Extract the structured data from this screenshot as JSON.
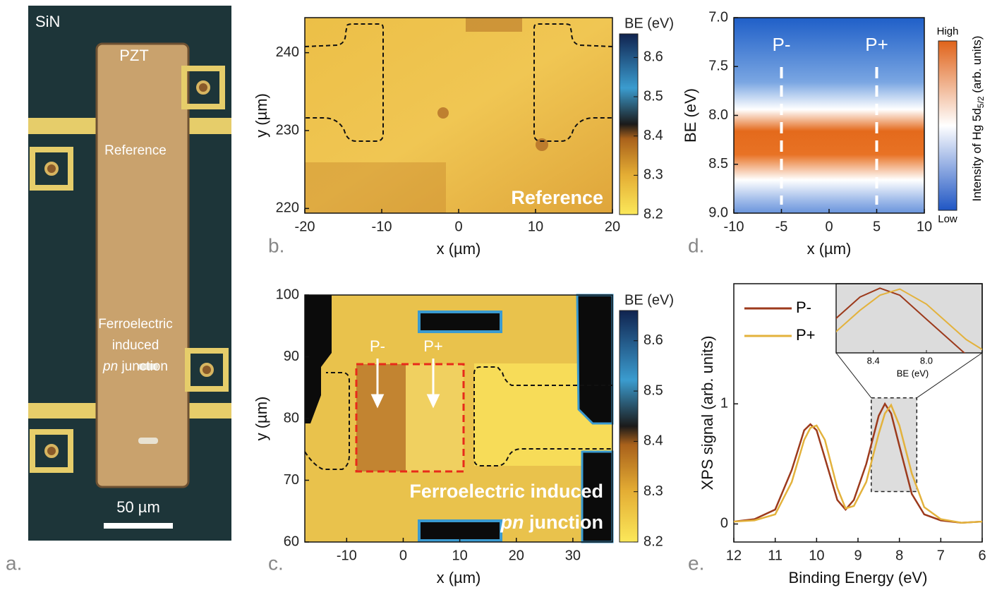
{
  "chart_data": [
    {
      "type": "image",
      "panel": "a.",
      "labels": [
        "SiN",
        "PZT",
        "Reference",
        "Ferroelectric",
        "induced"
      ],
      "label_italic": "pn",
      "label_rest": " junction",
      "scalebar": "50 µm"
    },
    {
      "type": "heatmap",
      "panel": "b.",
      "xlabel": "x (µm)",
      "ylabel": "y (µm)",
      "xlim": [
        -20,
        20
      ],
      "xticks": [
        -20,
        -10,
        0,
        10,
        20
      ],
      "ylim": [
        219.4,
        244.5
      ],
      "yticks": [
        220,
        230,
        240
      ],
      "colorbar": {
        "title": "BE (eV)",
        "clim": [
          8.2,
          8.66
        ],
        "ticks": [
          8.2,
          8.3,
          8.4,
          8.5,
          8.6
        ]
      },
      "annotation": "Reference"
    },
    {
      "type": "heatmap",
      "panel": "c.",
      "xlabel": "x (µm)",
      "ylabel": "y (µm)",
      "xlim": [
        -17.4,
        37
      ],
      "xticks": [
        -10,
        0,
        10,
        20,
        30
      ],
      "ylim": [
        60,
        100
      ],
      "yticks": [
        60,
        70,
        80,
        90,
        100
      ],
      "colorbar": {
        "title": "BE (eV)",
        "clim": [
          8.2,
          8.66
        ],
        "ticks": [
          8.2,
          8.3,
          8.4,
          8.5,
          8.6
        ]
      },
      "markers": [
        "P-",
        "P+"
      ],
      "annotation": "Ferroelectric induced",
      "annotation_italic": "pn",
      "annotation_rest": " junction"
    },
    {
      "type": "heatmap",
      "panel": "d.",
      "xlabel": "x (µm)",
      "ylabel": "BE (eV)",
      "xlim": [
        -10,
        10
      ],
      "xticks": [
        -10,
        -5,
        0,
        5,
        10
      ],
      "ylim": [
        9,
        7
      ],
      "yticks": [
        {
          "value": 7,
          "label": "7.0"
        },
        7.5,
        {
          "value": 8,
          "label": "8.0"
        },
        8.5,
        {
          "value": 9,
          "label": "9.0"
        }
      ],
      "markers": [
        {
          "label": "P-",
          "x": -5
        },
        {
          "label": "P+",
          "x": 5
        }
      ],
      "colorbar": {
        "high": "High",
        "low": "Low",
        "title": [
          "Intensity of Hg 5d",
          "5/2",
          " (arb. units)"
        ]
      }
    },
    {
      "type": "line",
      "panel": "e.",
      "xlabel": "Binding Energy (eV)",
      "ylabel": "XPS signal (arb. units)",
      "xlim": [
        12,
        6
      ],
      "xticks": [
        12,
        11,
        10,
        9,
        8,
        7,
        6
      ],
      "ylim": [
        -0.15,
        2.0
      ],
      "yticks": [
        0,
        1
      ],
      "x": [
        12,
        11.5,
        11,
        10.6,
        10.3,
        10.15,
        10.0,
        9.8,
        9.5,
        9.3,
        9.1,
        8.8,
        8.5,
        8.35,
        8.2,
        8.0,
        7.7,
        7.4,
        7,
        6.5,
        6
      ],
      "series": [
        {
          "name": "P-",
          "color": "#9c3a1c",
          "values": [
            0.02,
            0.04,
            0.12,
            0.45,
            0.78,
            0.83,
            0.78,
            0.55,
            0.2,
            0.12,
            0.2,
            0.5,
            0.9,
            1.0,
            0.92,
            0.65,
            0.25,
            0.08,
            0.03,
            0.01,
            0.02
          ]
        },
        {
          "name": "P+",
          "color": "#e3b23c",
          "values": [
            0.02,
            0.03,
            0.08,
            0.35,
            0.7,
            0.8,
            0.82,
            0.7,
            0.3,
            0.13,
            0.15,
            0.35,
            0.75,
            0.92,
            0.99,
            0.82,
            0.42,
            0.14,
            0.04,
            0.01,
            0.02
          ]
        }
      ],
      "inset": {
        "xlim": [
          8.68,
          7.58
        ],
        "ylim": [
          0.27,
          1.05
        ],
        "xticks": [
          8.4,
          {
            "value": 8,
            "label": "8.0"
          }
        ],
        "xlabel": "BE (eV)"
      }
    }
  ]
}
